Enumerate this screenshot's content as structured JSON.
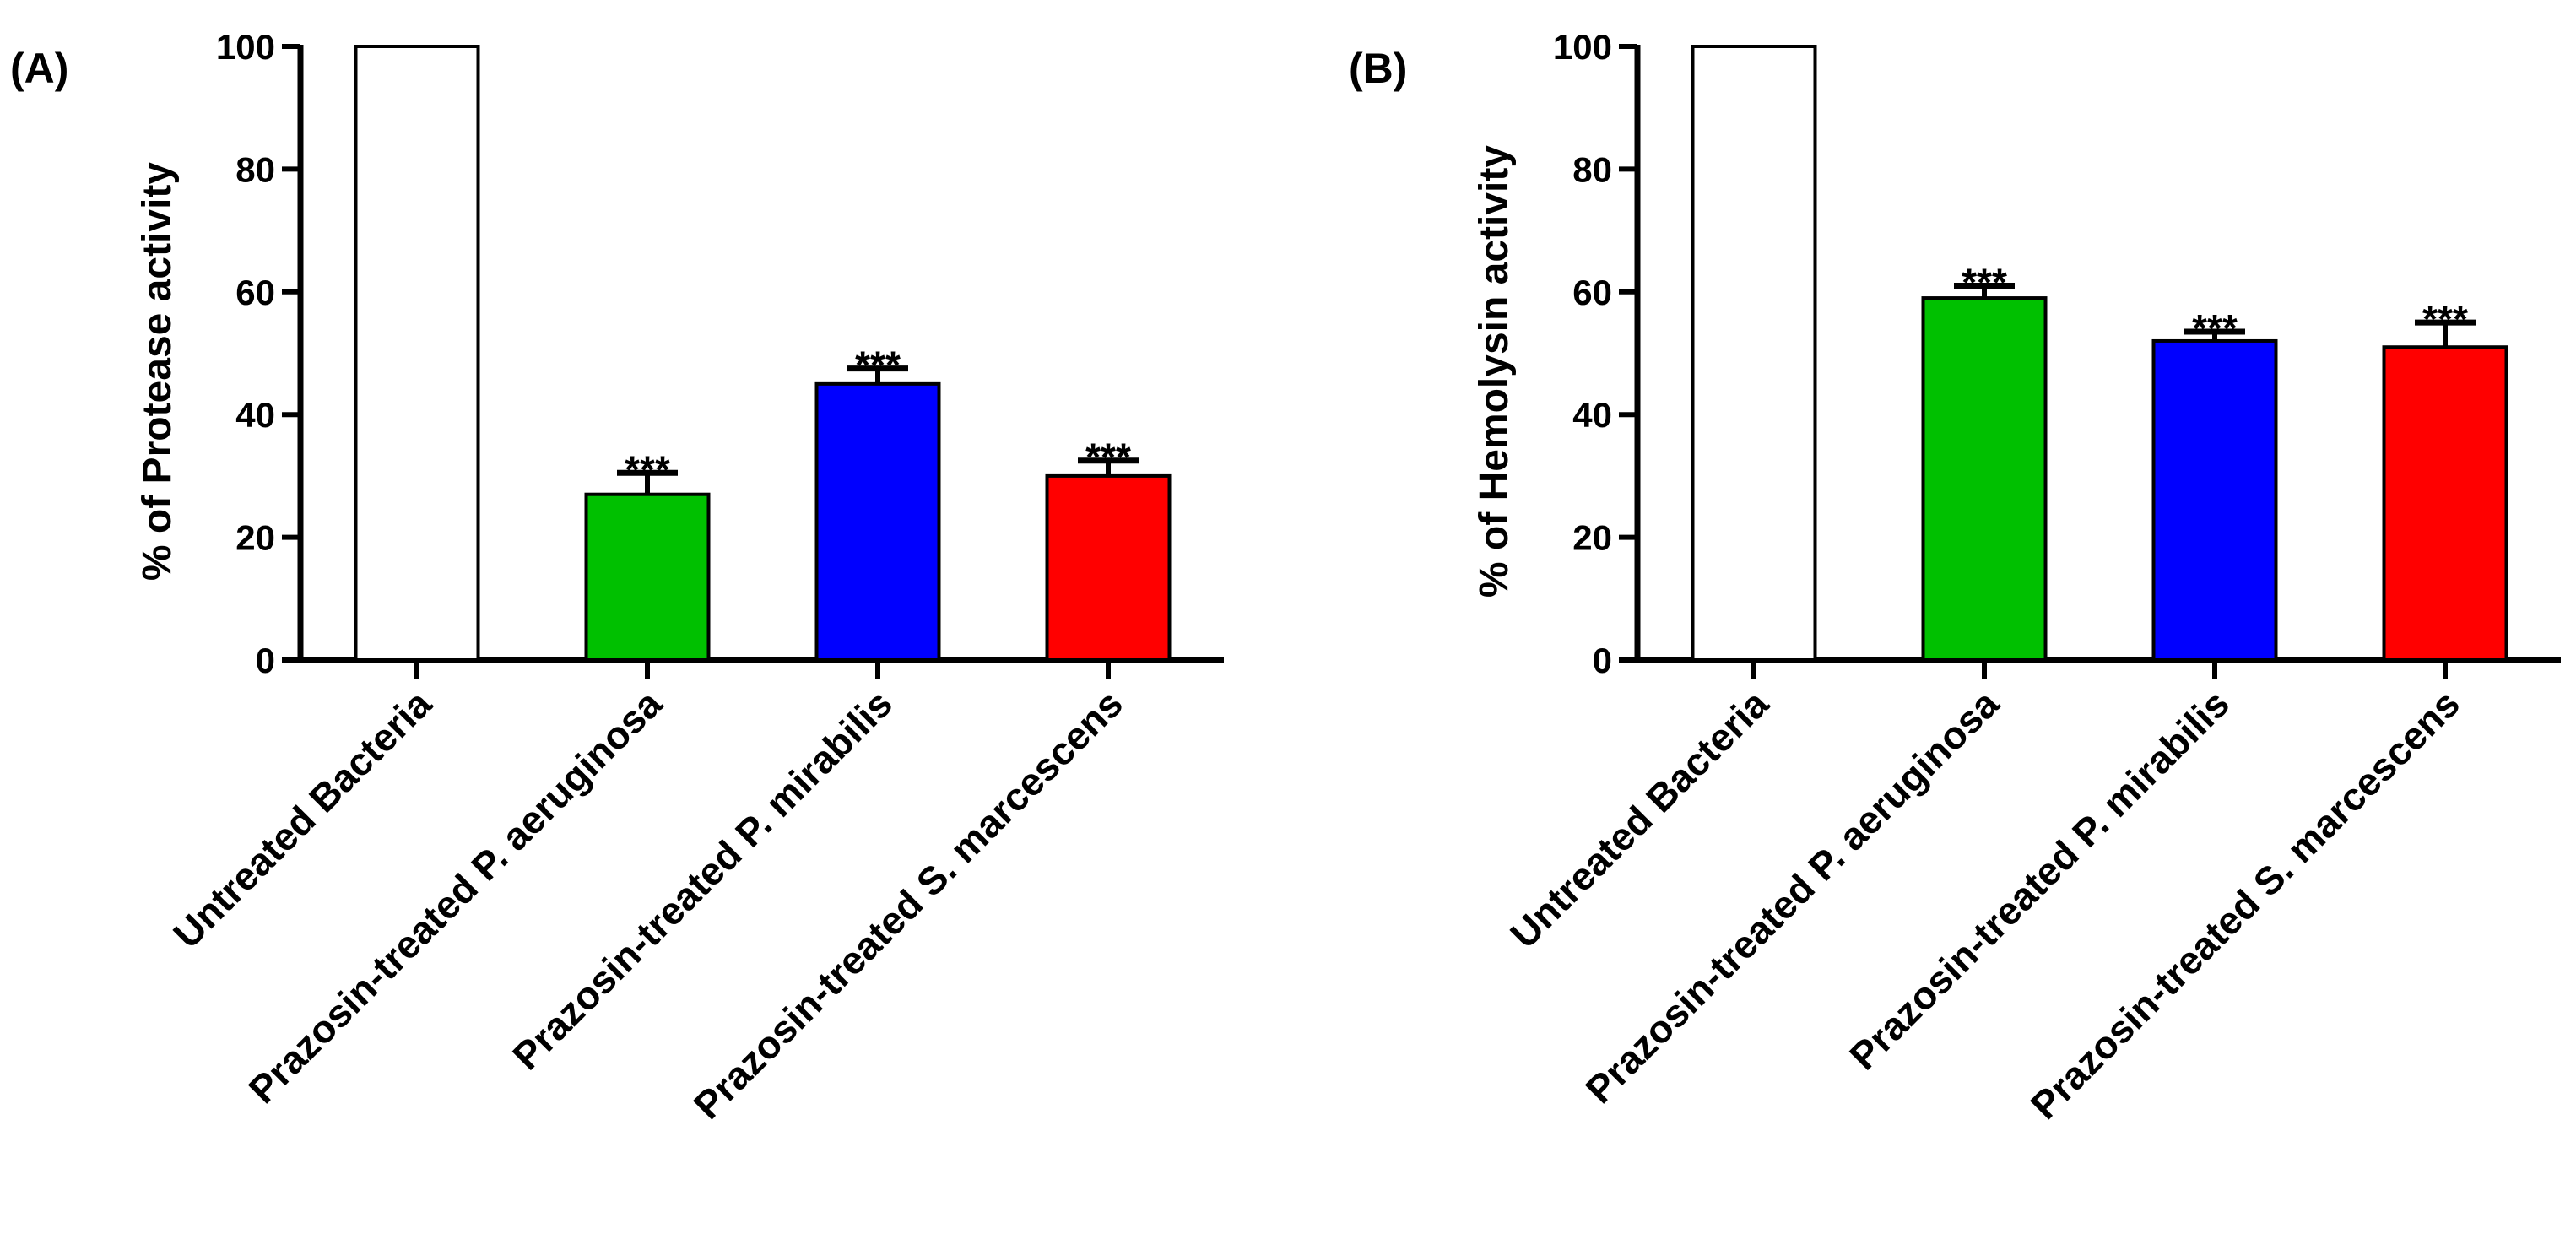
{
  "chart_data": [
    {
      "panel": "(A)",
      "type": "bar",
      "title": "",
      "ylabel": "% of Protease activity",
      "xlabel": "",
      "ylim": [
        0,
        100
      ],
      "yticks": [
        0,
        20,
        40,
        60,
        80,
        100
      ],
      "categories": [
        "Untreated Bacteria",
        "Prazosin-treated P. aeruginosa",
        "Prazosin-treated P.  mirabilis",
        "Prazosin-treated S. marcescens"
      ],
      "values": [
        100,
        27,
        45,
        30
      ],
      "errors": [
        0,
        3.5,
        2.5,
        2.5
      ],
      "colors": [
        "#ffffff",
        "#00c000",
        "#0000ff",
        "#ff0000"
      ],
      "annotations": [
        "",
        "***",
        "***",
        "***"
      ]
    },
    {
      "panel": "(B)",
      "type": "bar",
      "title": "",
      "ylabel": "% of Hemolysin activity",
      "xlabel": "",
      "ylim": [
        0,
        100
      ],
      "yticks": [
        0,
        20,
        40,
        60,
        80,
        100
      ],
      "categories": [
        "Untreated Bacteria",
        "Prazosin-treated P. aeruginosa",
        "Prazosin-treated P.  mirabilis",
        "Prazosin-treated S. marcescens"
      ],
      "values": [
        100,
        59,
        52,
        51
      ],
      "errors": [
        0,
        2,
        1.5,
        4
      ],
      "colors": [
        "#ffffff",
        "#00c000",
        "#0000ff",
        "#ff0000"
      ],
      "annotations": [
        "",
        "***",
        "***",
        "***"
      ]
    }
  ]
}
